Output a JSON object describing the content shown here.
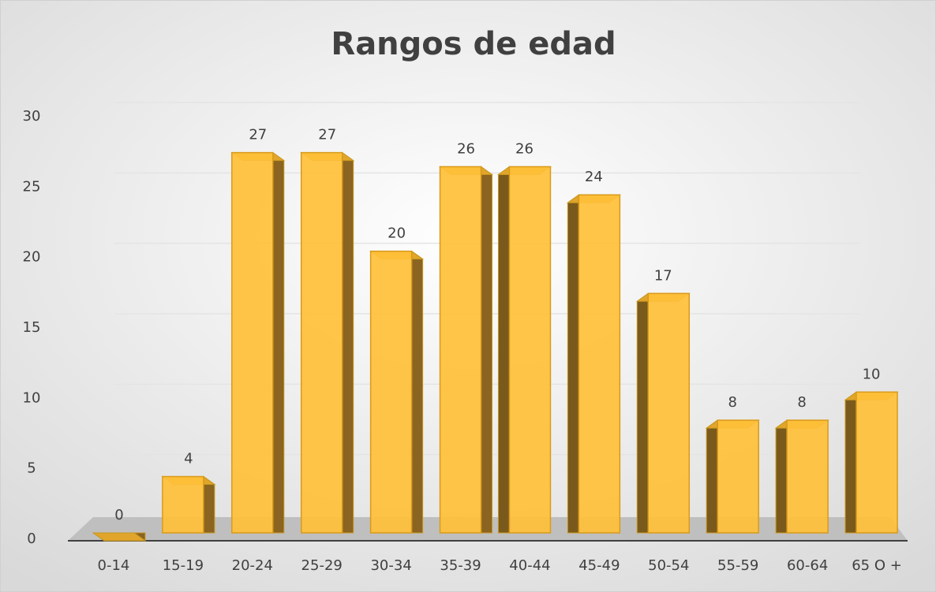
{
  "chart_data": {
    "type": "bar",
    "title": "Rangos de edad",
    "categories": [
      "0-14",
      "15-19",
      "20-24",
      "25-29",
      "30-34",
      "35-39",
      "40-44",
      "45-49",
      "50-54",
      "55-59",
      "60-64",
      "65 O +"
    ],
    "values": [
      0,
      4,
      27,
      27,
      20,
      26,
      26,
      24,
      17,
      8,
      8,
      10
    ],
    "color": "#ffc03a",
    "ylim": [
      0,
      30
    ],
    "yticks": [
      0,
      5,
      10,
      15,
      20,
      25,
      30
    ],
    "grid": true
  }
}
